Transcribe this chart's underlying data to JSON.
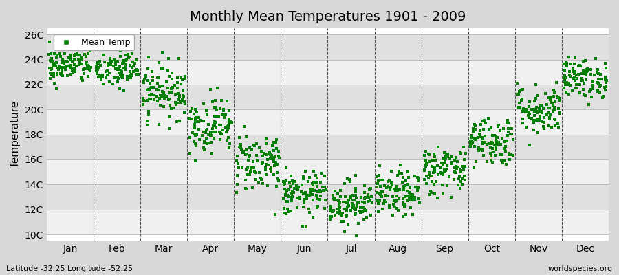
{
  "title": "Monthly Mean Temperatures 1901 - 2009",
  "ylabel": "Temperature",
  "xlabel_labels": [
    "Jan",
    "Feb",
    "Mar",
    "Apr",
    "May",
    "Jun",
    "Jul",
    "Aug",
    "Sep",
    "Oct",
    "Nov",
    "Dec"
  ],
  "ytick_labels": [
    "10C",
    "12C",
    "14C",
    "16C",
    "18C",
    "20C",
    "22C",
    "24C",
    "26C"
  ],
  "ytick_values": [
    10,
    12,
    14,
    16,
    18,
    20,
    22,
    24,
    26
  ],
  "ylim": [
    9.5,
    26.5
  ],
  "marker_color": "#008000",
  "figure_bg_color": "#d8d8d8",
  "plot_bg_color": "#ffffff",
  "band_color_light": "#f0f0f0",
  "band_color_dark": "#e0e0e0",
  "legend_label": "Mean Temp",
  "subtitle_left": "Latitude -32.25 Longitude -52.25",
  "subtitle_right": "worldspecies.org",
  "n_years": 109,
  "monthly_means": [
    23.5,
    23.2,
    21.5,
    18.8,
    15.8,
    13.2,
    12.5,
    13.2,
    15.2,
    17.5,
    20.0,
    22.5
  ],
  "monthly_stds": [
    0.7,
    0.8,
    1.1,
    1.1,
    1.2,
    0.9,
    0.9,
    0.9,
    1.0,
    1.0,
    1.0,
    0.8
  ]
}
